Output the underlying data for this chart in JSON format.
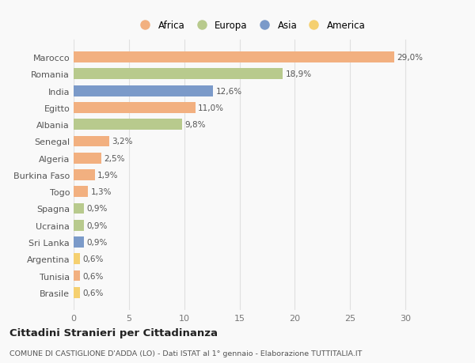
{
  "countries": [
    "Brasile",
    "Tunisia",
    "Argentina",
    "Sri Lanka",
    "Ucraina",
    "Spagna",
    "Togo",
    "Burkina Faso",
    "Algeria",
    "Senegal",
    "Albania",
    "Egitto",
    "India",
    "Romania",
    "Marocco"
  ],
  "values": [
    0.6,
    0.6,
    0.6,
    0.9,
    0.9,
    0.9,
    1.3,
    1.9,
    2.5,
    3.2,
    9.8,
    11.0,
    12.6,
    18.9,
    29.0
  ],
  "labels": [
    "0,6%",
    "0,6%",
    "0,6%",
    "0,9%",
    "0,9%",
    "0,9%",
    "1,3%",
    "1,9%",
    "2,5%",
    "3,2%",
    "9,8%",
    "11,0%",
    "12,6%",
    "18,9%",
    "29,0%"
  ],
  "continents": [
    "America",
    "Africa",
    "America",
    "Asia",
    "Europa",
    "Europa",
    "Africa",
    "Africa",
    "Africa",
    "Africa",
    "Europa",
    "Africa",
    "Asia",
    "Europa",
    "Africa"
  ],
  "colors": {
    "Africa": "#F2B080",
    "Europa": "#B8CA8D",
    "Asia": "#7B9AC9",
    "America": "#F5D070"
  },
  "legend_order": [
    "Africa",
    "Europa",
    "Asia",
    "America"
  ],
  "legend_colors": [
    "#F2B080",
    "#B8CA8D",
    "#7B9AC9",
    "#F5D070"
  ],
  "title": "Cittadini Stranieri per Cittadinanza",
  "subtitle": "COMUNE DI CASTIGLIONE D'ADDA (LO) - Dati ISTAT al 1° gennaio - Elaborazione TUTTITALIA.IT",
  "xlim": [
    0,
    32
  ],
  "xticks": [
    0,
    5,
    10,
    15,
    20,
    25,
    30
  ],
  "background_color": "#f9f9f9",
  "grid_color": "#e0e0e0"
}
